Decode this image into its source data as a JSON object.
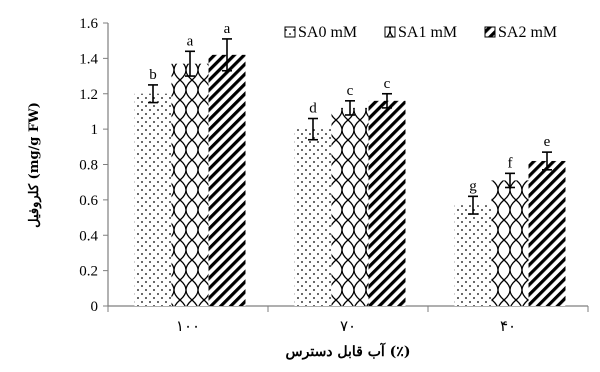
{
  "chart_data": {
    "type": "bar",
    "title": "",
    "xlabel": "آب قابل دسترس (٪)",
    "ylabel": "کلروفیل (mg/g FW)",
    "ylim": [
      0,
      1.6
    ],
    "yticks": [
      "0",
      "0.2",
      "0.4",
      "0.6",
      "0.8",
      "1",
      "1.2",
      "1.4",
      "1.6"
    ],
    "categories": [
      "۱۰۰",
      "۷۰",
      "۴۰"
    ],
    "series": [
      {
        "name": "SA0 mM",
        "pattern": "dots",
        "values": [
          1.2,
          1.0,
          0.57
        ],
        "errors": [
          0.05,
          0.06,
          0.05
        ],
        "letters": [
          "b",
          "d",
          "g"
        ]
      },
      {
        "name": "SA1 mM",
        "pattern": "wave",
        "values": [
          1.37,
          1.12,
          0.71
        ],
        "errors": [
          0.07,
          0.04,
          0.04
        ],
        "letters": [
          "a",
          "c",
          "f"
        ]
      },
      {
        "name": "SA2 mM",
        "pattern": "diagonal",
        "values": [
          1.42,
          1.16,
          0.82
        ],
        "errors": [
          0.09,
          0.04,
          0.05
        ],
        "letters": [
          "a",
          "c",
          "e"
        ]
      }
    ],
    "legend_position": "top-right",
    "grid": false,
    "colors": {
      "bar_fill": "#ffffff",
      "pattern": "#000000",
      "axis": "#7f7f7f"
    }
  }
}
